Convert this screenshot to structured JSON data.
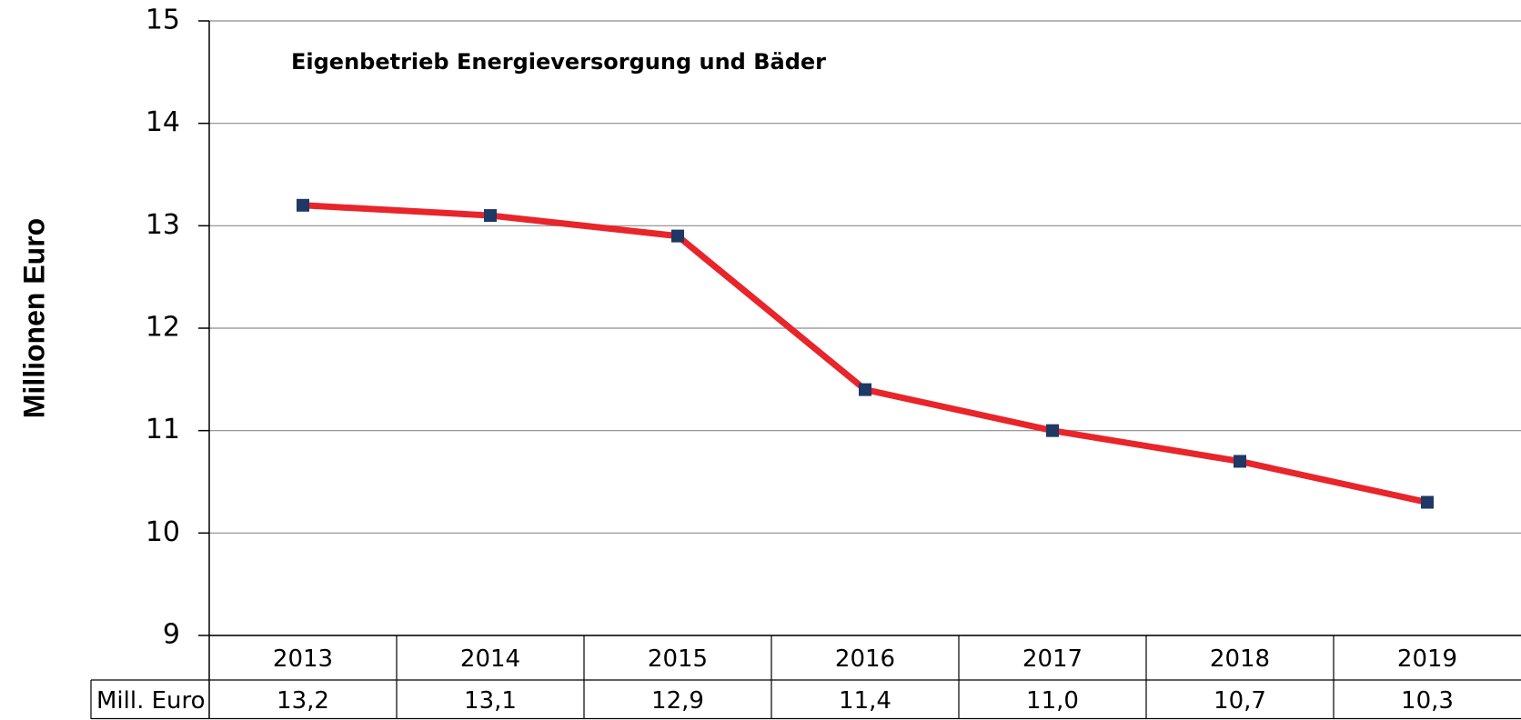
{
  "chart_data": {
    "type": "line",
    "title": "Eigenbetrieb Energieversorgung und Bäder",
    "y_label": "Millionen Euro",
    "categories": [
      "2013",
      "2014",
      "2015",
      "2016",
      "2017",
      "2018",
      "2019"
    ],
    "series": [
      {
        "name": "Mill. Euro",
        "color": "#e8252a",
        "marker_color": "#1f3864",
        "values": [
          13.2,
          13.1,
          12.9,
          11.4,
          11.0,
          10.7,
          10.3
        ],
        "value_labels": [
          "13,2",
          "13,1",
          "12,9",
          "11,4",
          "11,0",
          "10,7",
          "10,3"
        ]
      }
    ],
    "ylim": [
      9,
      15
    ],
    "yticks": [
      9,
      10,
      11,
      12,
      13,
      14,
      15
    ],
    "grid": true
  }
}
